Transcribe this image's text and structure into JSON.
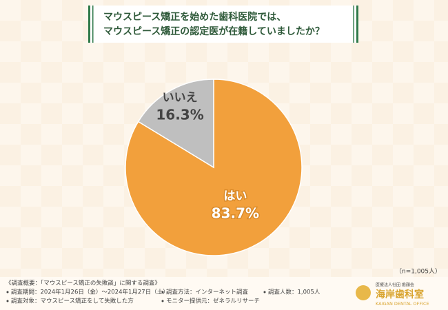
{
  "chart_data": {
    "type": "pie",
    "title_lines": [
      "マウスピース矯正を始めた歯科医院では、",
      "マウスピース矯正の認定医が在籍していましたか？"
    ],
    "categories": [
      "はい",
      "いいえ"
    ],
    "values": [
      83.7,
      16.3
    ],
    "value_labels": [
      "83.7%",
      "16.3%"
    ],
    "colors": [
      "#f2a03c",
      "#bfbfbf"
    ],
    "label_colors": [
      "#ffffff",
      "#444444"
    ],
    "sample_note": "（n=1,005人）",
    "footer": {
      "heading": "《調査概要：「マウスピース矯正の失敗談」に関する調査》",
      "items": [
        "調査期間：2024年1月26日（金）～2024年1月27日（土）",
        "調査方法：インターネット調査",
        "調査人数：1,005人",
        "調査対象：マウスピース矯正をして失敗した方",
        "モニター提供元：ゼネラルリサーチ"
      ]
    },
    "logo": {
      "org": "医療法人社団 歯顔会",
      "name": "海岸歯科室",
      "sub": "KAIGAN DENTAL OFFICE"
    }
  }
}
